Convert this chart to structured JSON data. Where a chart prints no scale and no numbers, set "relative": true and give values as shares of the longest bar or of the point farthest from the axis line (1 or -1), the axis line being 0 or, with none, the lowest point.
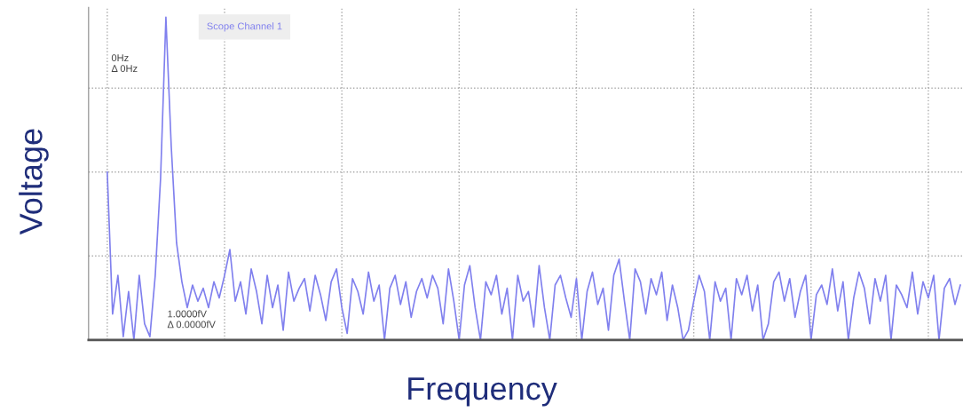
{
  "chart_data": {
    "type": "line",
    "xlabel": "Frequency",
    "ylabel": "Voltage",
    "relative": true,
    "grid": true,
    "categories": [
      null,
      null,
      null,
      null,
      null,
      null,
      null,
      null,
      null,
      null,
      null,
      null,
      null,
      null,
      null,
      null,
      null,
      null,
      null,
      null,
      null,
      null,
      null,
      null,
      null,
      null,
      null,
      null,
      null,
      null,
      null,
      null,
      null,
      null,
      null,
      null,
      null,
      null,
      null,
      null,
      null,
      null,
      null,
      null,
      null,
      null,
      null,
      null,
      null,
      null,
      null,
      null,
      null,
      null,
      null,
      null,
      null,
      null,
      null,
      null,
      null,
      null,
      null,
      null,
      null,
      null,
      null,
      null,
      null,
      null,
      null,
      null,
      null,
      null,
      null,
      null,
      null,
      null,
      null,
      null,
      null,
      null,
      null,
      null,
      null,
      null,
      null,
      null,
      null,
      null,
      null,
      null,
      null,
      null,
      null,
      null,
      null,
      null,
      null,
      null,
      null,
      null,
      null,
      null,
      null,
      null,
      null,
      null,
      null,
      null,
      null,
      null,
      null,
      null,
      null,
      null,
      null,
      null,
      null,
      null,
      null,
      null,
      null,
      null,
      null,
      null,
      null,
      null,
      null,
      null,
      null,
      null,
      null,
      null,
      null,
      null,
      null,
      null,
      null,
      null,
      null,
      null,
      null,
      null,
      null,
      null,
      null,
      null,
      null,
      null,
      null,
      null,
      null,
      null,
      null,
      null,
      null,
      null,
      null,
      null,
      null
    ],
    "series": [
      {
        "name": "Scope Channel 1",
        "color": "#8080ee",
        "values": [
          0.52,
          0.08,
          0.2,
          0.01,
          0.15,
          0.0,
          0.2,
          0.05,
          0.01,
          0.2,
          0.5,
          1.0,
          0.6,
          0.3,
          0.18,
          0.1,
          0.17,
          0.12,
          0.16,
          0.1,
          0.18,
          0.13,
          0.2,
          0.28,
          0.12,
          0.18,
          0.08,
          0.22,
          0.15,
          0.05,
          0.2,
          0.1,
          0.17,
          0.03,
          0.21,
          0.12,
          0.16,
          0.19,
          0.09,
          0.2,
          0.14,
          0.06,
          0.18,
          0.22,
          0.1,
          0.02,
          0.19,
          0.15,
          0.08,
          0.21,
          0.12,
          0.17,
          0.0,
          0.16,
          0.2,
          0.11,
          0.18,
          0.07,
          0.15,
          0.19,
          0.13,
          0.2,
          0.16,
          0.05,
          0.22,
          0.12,
          0.0,
          0.17,
          0.23,
          0.1,
          0.0,
          0.18,
          0.14,
          0.2,
          0.08,
          0.16,
          0.0,
          0.2,
          0.12,
          0.15,
          0.04,
          0.23,
          0.1,
          0.0,
          0.17,
          0.2,
          0.13,
          0.07,
          0.19,
          0.0,
          0.15,
          0.21,
          0.11,
          0.16,
          0.03,
          0.2,
          0.25,
          0.12,
          0.0,
          0.22,
          0.18,
          0.08,
          0.19,
          0.14,
          0.21,
          0.06,
          0.17,
          0.1,
          0.0,
          0.03,
          0.12,
          0.2,
          0.15,
          0.0,
          0.18,
          0.12,
          0.16,
          0.0,
          0.19,
          0.14,
          0.2,
          0.09,
          0.17,
          0.0,
          0.05,
          0.18,
          0.21,
          0.12,
          0.19,
          0.07,
          0.15,
          0.2,
          0.0,
          0.14,
          0.17,
          0.11,
          0.22,
          0.09,
          0.18,
          0.0,
          0.13,
          0.21,
          0.16,
          0.05,
          0.19,
          0.12,
          0.2,
          0.0,
          0.17,
          0.14,
          0.1,
          0.21,
          0.08,
          0.18,
          0.13,
          0.2,
          0.0,
          0.16,
          0.19,
          0.11,
          0.17
        ]
      }
    ],
    "annotations": [
      "0Hz\nΔ 0Hz",
      "1.0000fV\nΔ 0.0000fV"
    ]
  }
}
